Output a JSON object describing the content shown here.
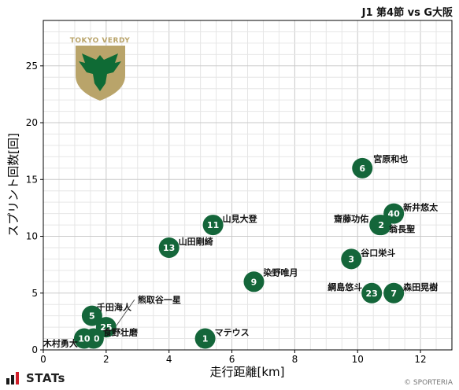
{
  "header": {
    "title": "J1 第4節 vs G大阪"
  },
  "footer": {
    "brand": "STATs",
    "copyright": "© SPORTERIA"
  },
  "colors": {
    "marker": "#14663a",
    "marker_text": "#ffffff",
    "grid_major": "#c9c9c9",
    "grid_minor": "#e6e6e6",
    "axis": "#000000"
  },
  "logo": {
    "text": "TOKYO VERDY",
    "shield_color": "#b9a46a",
    "eagle_color": "#0f6b35"
  },
  "chart_data": {
    "type": "scatter",
    "title": "J1 第4節 vs G大阪",
    "xlabel": "走行距離[km]",
    "ylabel": "スプリント回数[回]",
    "xlim": [
      0,
      13
    ],
    "ylim": [
      0,
      29
    ],
    "xticks": [
      0,
      2,
      4,
      6,
      8,
      10,
      12
    ],
    "yticks": [
      0,
      5,
      10,
      15,
      20,
      25
    ],
    "grid": true,
    "points": [
      {
        "number": "6",
        "name": "宮原和也",
        "x": 10.15,
        "y": 16
      },
      {
        "number": "40",
        "name": "新井悠太",
        "x": 11.15,
        "y": 12
      },
      {
        "number": "32",
        "name": "齋藤功佑",
        "x": 10.7,
        "y": 11
      },
      {
        "number": "2",
        "name": "翁長聖",
        "x": 10.75,
        "y": 11
      },
      {
        "number": "3",
        "name": "谷口栄斗",
        "x": 9.8,
        "y": 8
      },
      {
        "number": "23",
        "name": "綱島悠斗",
        "x": 10.45,
        "y": 5
      },
      {
        "number": "7",
        "name": "森田晃樹",
        "x": 11.15,
        "y": 5
      },
      {
        "number": "11",
        "name": "山見大登",
        "x": 5.4,
        "y": 11
      },
      {
        "number": "13",
        "name": "山田剛綺",
        "x": 4.0,
        "y": 9
      },
      {
        "number": "9",
        "name": "染野唯月",
        "x": 6.7,
        "y": 6
      },
      {
        "number": "1",
        "name": "マテウス",
        "x": 5.15,
        "y": 1
      },
      {
        "number": "5",
        "name": "千田海人",
        "x": 1.55,
        "y": 3
      },
      {
        "number": "25",
        "name": "熊取谷一星",
        "x": 2.0,
        "y": 2
      },
      {
        "number": "20",
        "name": "食野壮磨",
        "x": 1.6,
        "y": 1
      },
      {
        "number": "10",
        "name": "木村勇大",
        "x": 1.3,
        "y": 1
      }
    ]
  }
}
